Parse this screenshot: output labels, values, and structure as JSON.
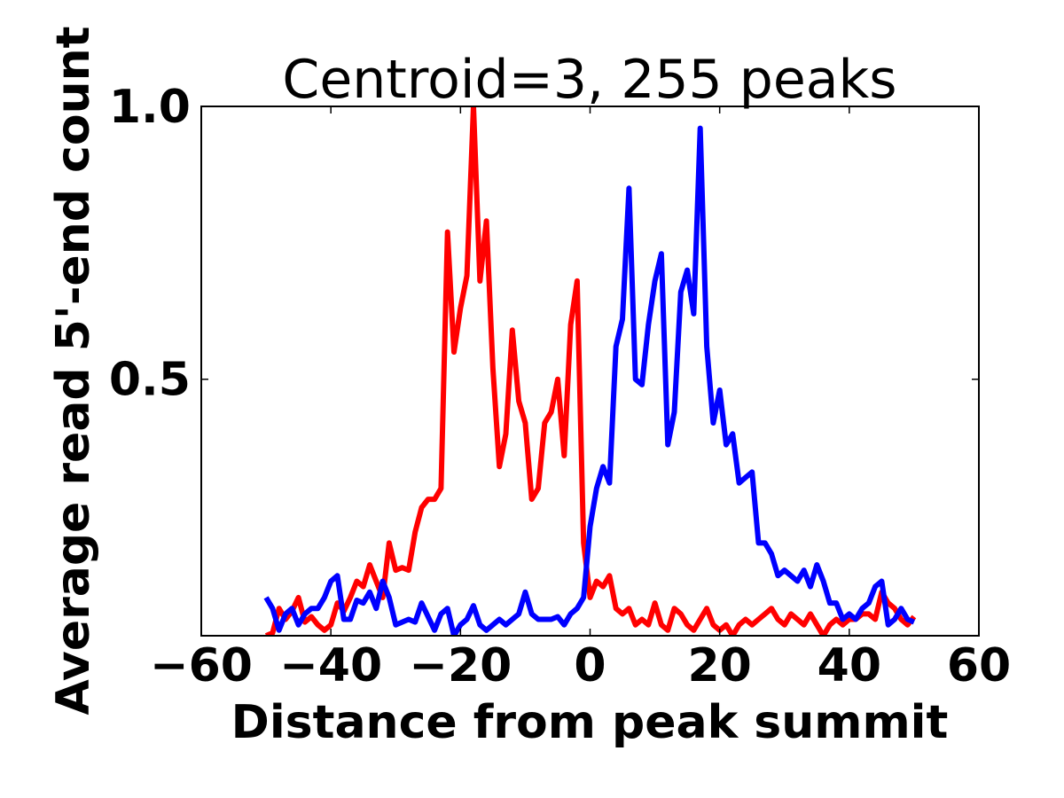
{
  "chart_data": {
    "type": "line",
    "title": "Centroid=3, 255 peaks",
    "xlabel": "Distance from peak summit",
    "ylabel": "Average read 5'-end count",
    "xlim": [
      -60,
      60
    ],
    "ylim": [
      0.03,
      1.0
    ],
    "xticks": [
      -60,
      -40,
      -20,
      0,
      20,
      40,
      60
    ],
    "xtick_labels": [
      "−60",
      "−40",
      "−20",
      "0",
      "20",
      "40",
      "60"
    ],
    "yticks": [
      0.5,
      1.0
    ],
    "ytick_labels": [
      "0.5",
      "1.0"
    ],
    "grid": false,
    "x": [
      -50,
      -49,
      -48,
      -47,
      -46,
      -45,
      -44,
      -43,
      -42,
      -41,
      -40,
      -39,
      -38,
      -37,
      -36,
      -35,
      -34,
      -33,
      -32,
      -31,
      -30,
      -29,
      -28,
      -27,
      -26,
      -25,
      -24,
      -23,
      -22,
      -21,
      -20,
      -19,
      -18,
      -17,
      -16,
      -15,
      -14,
      -13,
      -12,
      -11,
      -10,
      -9,
      -8,
      -7,
      -6,
      -5,
      -4,
      -3,
      -2,
      -1,
      0,
      1,
      2,
      3,
      4,
      5,
      6,
      7,
      8,
      9,
      10,
      11,
      12,
      13,
      14,
      15,
      16,
      17,
      18,
      19,
      20,
      21,
      22,
      23,
      24,
      25,
      26,
      27,
      28,
      29,
      30,
      31,
      32,
      33,
      34,
      35,
      36,
      37,
      38,
      39,
      40,
      41,
      42,
      43,
      44,
      45,
      46,
      47,
      48,
      49,
      50
    ],
    "series": [
      {
        "color": "#ff0000",
        "values": [
          0.03,
          0.035,
          0.08,
          0.06,
          0.075,
          0.1,
          0.055,
          0.065,
          0.05,
          0.04,
          0.05,
          0.09,
          0.075,
          0.1,
          0.13,
          0.12,
          0.16,
          0.13,
          0.1,
          0.2,
          0.15,
          0.155,
          0.15,
          0.22,
          0.265,
          0.28,
          0.28,
          0.3,
          0.77,
          0.55,
          0.63,
          0.69,
          1.0,
          0.68,
          0.79,
          0.52,
          0.34,
          0.4,
          0.59,
          0.46,
          0.42,
          0.28,
          0.3,
          0.42,
          0.44,
          0.5,
          0.36,
          0.6,
          0.68,
          0.2,
          0.1,
          0.13,
          0.12,
          0.14,
          0.08,
          0.07,
          0.08,
          0.05,
          0.06,
          0.05,
          0.09,
          0.05,
          0.04,
          0.08,
          0.07,
          0.05,
          0.04,
          0.06,
          0.08,
          0.05,
          0.04,
          0.05,
          0.03,
          0.05,
          0.06,
          0.05,
          0.06,
          0.07,
          0.08,
          0.06,
          0.05,
          0.07,
          0.06,
          0.05,
          0.07,
          0.05,
          0.03,
          0.05,
          0.06,
          0.05,
          0.06,
          0.06,
          0.07,
          0.07,
          0.06,
          0.11,
          0.09,
          0.08,
          0.06,
          0.05,
          0.065
        ]
      },
      {
        "color": "#0000ff",
        "values": [
          0.1,
          0.08,
          0.04,
          0.07,
          0.08,
          0.05,
          0.07,
          0.08,
          0.08,
          0.1,
          0.13,
          0.14,
          0.06,
          0.06,
          0.095,
          0.09,
          0.11,
          0.08,
          0.13,
          0.1,
          0.05,
          0.055,
          0.06,
          0.055,
          0.09,
          0.065,
          0.04,
          0.07,
          0.08,
          0.03,
          0.05,
          0.06,
          0.085,
          0.05,
          0.04,
          0.05,
          0.06,
          0.05,
          0.06,
          0.07,
          0.11,
          0.07,
          0.06,
          0.06,
          0.06,
          0.065,
          0.05,
          0.07,
          0.08,
          0.1,
          0.23,
          0.3,
          0.34,
          0.31,
          0.56,
          0.61,
          0.85,
          0.5,
          0.49,
          0.6,
          0.68,
          0.73,
          0.38,
          0.44,
          0.66,
          0.7,
          0.62,
          0.96,
          0.56,
          0.42,
          0.48,
          0.38,
          0.4,
          0.31,
          0.32,
          0.33,
          0.2,
          0.2,
          0.18,
          0.14,
          0.15,
          0.14,
          0.13,
          0.15,
          0.12,
          0.16,
          0.13,
          0.09,
          0.09,
          0.06,
          0.07,
          0.06,
          0.08,
          0.09,
          0.12,
          0.13,
          0.05,
          0.06,
          0.08,
          0.06,
          0.055
        ]
      }
    ]
  }
}
